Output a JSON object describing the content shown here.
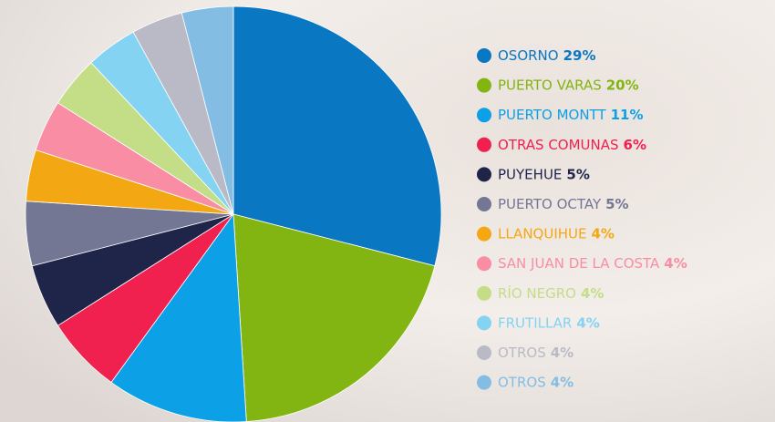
{
  "chart_data": {
    "type": "pie",
    "categories": [
      "OSORNO",
      "PUERTO VARAS",
      "PUERTO MONTT",
      "OTRAS COMUNAS",
      "PUYEHUE",
      "PUERTO OCTAY",
      "LLANQUIHUE",
      "SAN JUAN DE LA COSTA",
      "RÍO NEGRO",
      "FRUTILLAR",
      "OTROS",
      "OTROS"
    ],
    "values": [
      29,
      20,
      11,
      6,
      5,
      5,
      4,
      4,
      4,
      4,
      4,
      4
    ],
    "value_labels": [
      "29%",
      "20%",
      "11%",
      "6%",
      "5%",
      "5%",
      "4%",
      "4%",
      "4%",
      "4%",
      "4%",
      "4%"
    ],
    "colors": [
      "#0a77c2",
      "#82b512",
      "#0ca0e6",
      "#f0214e",
      "#1e2548",
      "#737793",
      "#f3a813",
      "#f98da3",
      "#c4dd87",
      "#84d3f3",
      "#b9bac6",
      "#84bde3"
    ],
    "legend": "right"
  }
}
